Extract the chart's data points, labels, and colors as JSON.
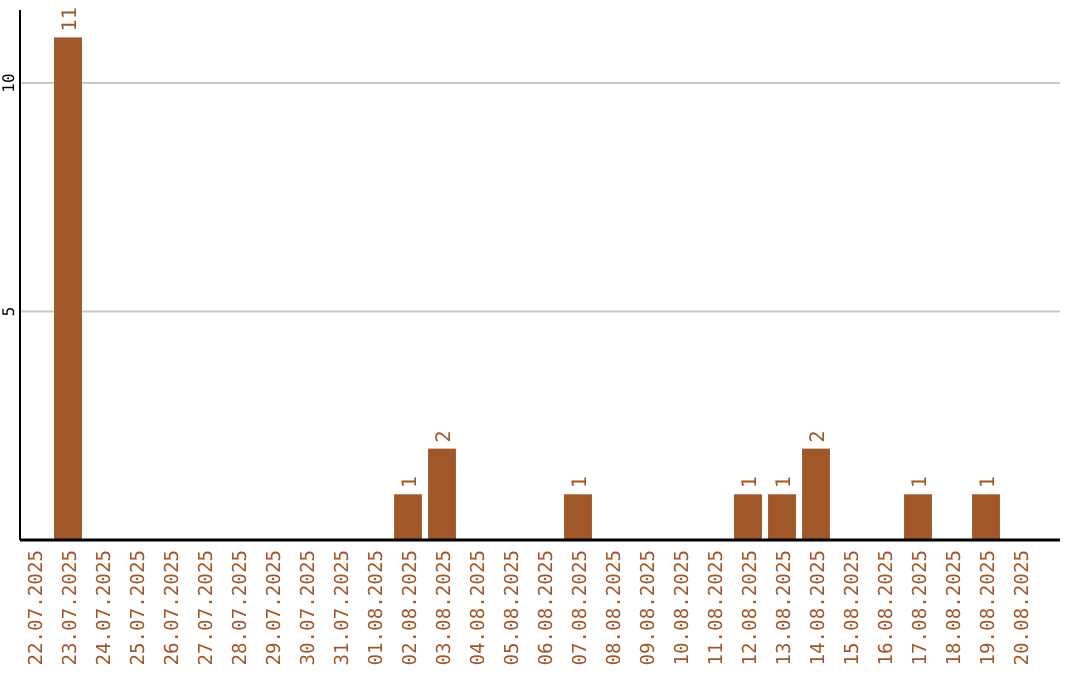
{
  "chart_data": {
    "type": "bar",
    "categories": [
      "22.07.2025",
      "23.07.2025",
      "24.07.2025",
      "25.07.2025",
      "26.07.2025",
      "27.07.2025",
      "28.07.2025",
      "29.07.2025",
      "30.07.2025",
      "31.07.2025",
      "01.08.2025",
      "02.08.2025",
      "03.08.2025",
      "04.08.2025",
      "05.08.2025",
      "06.08.2025",
      "07.08.2025",
      "08.08.2025",
      "09.08.2025",
      "10.08.2025",
      "11.08.2025",
      "12.08.2025",
      "13.08.2025",
      "14.08.2025",
      "15.08.2025",
      "16.08.2025",
      "17.08.2025",
      "18.08.2025",
      "19.08.2025",
      "20.08.2025"
    ],
    "values": [
      0,
      11,
      0,
      0,
      0,
      0,
      0,
      0,
      0,
      0,
      0,
      1,
      2,
      0,
      0,
      0,
      1,
      0,
      0,
      0,
      0,
      1,
      1,
      2,
      0,
      0,
      1,
      0,
      1,
      0
    ],
    "value_labels": [
      null,
      "11",
      null,
      null,
      null,
      null,
      null,
      null,
      null,
      null,
      null,
      "1",
      "2",
      null,
      null,
      null,
      "1",
      null,
      null,
      null,
      null,
      "1",
      "1",
      "2",
      null,
      null,
      "1",
      null,
      "1",
      null
    ],
    "color": "#a0572a",
    "ylim": [
      0,
      11.6
    ],
    "yticks": [
      5,
      10
    ],
    "grid": "y"
  }
}
